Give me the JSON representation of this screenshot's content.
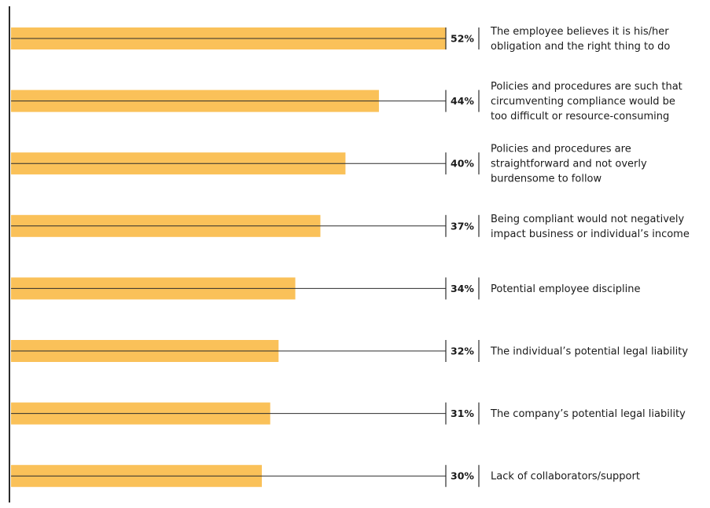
{
  "chart_data": {
    "type": "bar",
    "orientation": "horizontal",
    "categories": [
      [
        "The employee believes it is his/her",
        "obligation and the right thing to do"
      ],
      [
        "Policies and procedures are such that",
        "circumventing compliance would be",
        "too difficult or resource-consuming"
      ],
      [
        "Policies and procedures are",
        "straightforward and not overly",
        "burdensome to follow"
      ],
      [
        "Being compliant would not negatively",
        "impact business or individual’s income"
      ],
      [
        "Potential employee discipline"
      ],
      [
        "The individual’s potential legal liability"
      ],
      [
        "The company’s potential legal liability"
      ],
      [
        "Lack of collaborators/support"
      ]
    ],
    "values": [
      52,
      44,
      40,
      37,
      34,
      32,
      31,
      30
    ],
    "value_labels": [
      "52%",
      "44%",
      "40%",
      "37%",
      "34%",
      "32%",
      "31%",
      "30%"
    ],
    "unit": "%",
    "xlim": [
      0,
      52
    ],
    "grid": false,
    "legend": "none",
    "colors": {
      "bar": "#fac159",
      "line": "#2b2b2b",
      "text": "#1a1a1a"
    }
  }
}
